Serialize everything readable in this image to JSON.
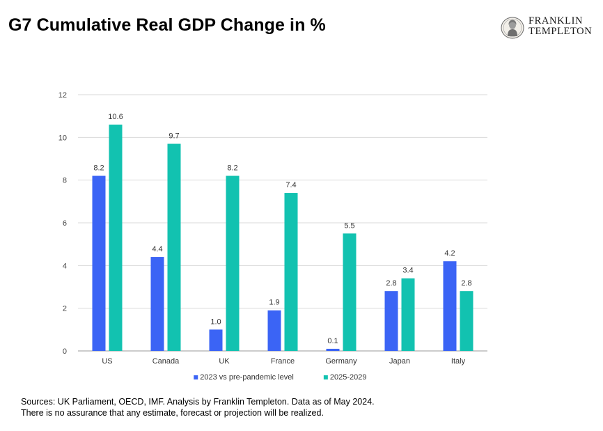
{
  "title": "G7 Cumulative Real GDP Change in %",
  "logo": {
    "line1": "FRANKLIN",
    "line2": "TEMPLETON"
  },
  "chart_data": {
    "type": "bar",
    "categories": [
      "US",
      "Canada",
      "UK",
      "France",
      "Germany",
      "Japan",
      "Italy"
    ],
    "series": [
      {
        "name": "2023 vs pre-pandemic level",
        "values": [
          8.2,
          4.4,
          1.0,
          1.9,
          0.1,
          2.8,
          4.2
        ],
        "labels": [
          "8.2",
          "4.4",
          "1.0",
          "1.9",
          "0.1",
          "2.8",
          "4.2"
        ],
        "color": "#3b64f5"
      },
      {
        "name": "2025-2029",
        "values": [
          10.6,
          9.7,
          8.2,
          7.4,
          5.5,
          3.4,
          2.8
        ],
        "labels": [
          "10.6",
          "9.7",
          "8.2",
          "7.4",
          "5.5",
          "3.4",
          "2.8"
        ],
        "color": "#12c2b0"
      }
    ],
    "ylim": [
      0,
      12
    ],
    "yticks": [
      0,
      2,
      4,
      6,
      8,
      10,
      12
    ],
    "grid": true,
    "legend": "bottom"
  },
  "footer": {
    "line1": "Sources: UK Parliament, OECD, IMF. Analysis by Franklin Templeton. Data as of May 2024.",
    "line2": "There is no assurance that any estimate, forecast or projection will be realized."
  }
}
